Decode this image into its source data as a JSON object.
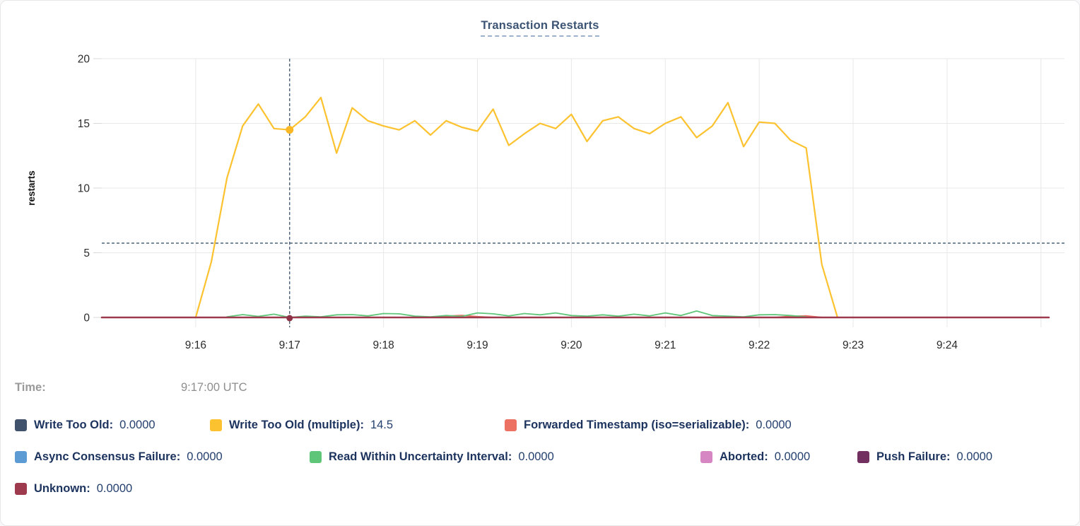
{
  "title": "Transaction Restarts",
  "time": {
    "label": "Time:",
    "value": "9:17:00 UTC"
  },
  "colors": {
    "grid": "#e8e8e8",
    "tick": "#d9d9d9",
    "axis_text": "#2b2b2b",
    "crosshair": "#3d566e",
    "title": "#3c5474",
    "legend_label": "#1c335e",
    "legend_value": "#24406e",
    "time_text": "#979797",
    "hover_dot_yellow": "#fcb824",
    "hover_dot_maroon": "#8e3346"
  },
  "chart_data": {
    "type": "line",
    "title": "Transaction Restarts",
    "xlabel": "",
    "ylabel": "restarts",
    "ylim": [
      0,
      20
    ],
    "y_ticks": [
      0,
      5,
      10,
      15,
      20
    ],
    "x_domain_seconds": [
      0,
      615
    ],
    "x_domain_note": "seconds after 9:15:00 UTC",
    "x_ticks": [
      {
        "t": 60,
        "label": "9:16"
      },
      {
        "t": 120,
        "label": "9:17"
      },
      {
        "t": 180,
        "label": "9:18"
      },
      {
        "t": 240,
        "label": "9:19"
      },
      {
        "t": 300,
        "label": "9:20"
      },
      {
        "t": 360,
        "label": "9:21"
      },
      {
        "t": 420,
        "label": "9:22"
      },
      {
        "t": 480,
        "label": "9:23"
      },
      {
        "t": 540,
        "label": "9:24"
      },
      {
        "t": 600,
        "label": ""
      }
    ],
    "grid": true,
    "legend_position": "bottom",
    "crosshair": {
      "t": 120,
      "time": "9:17:00 UTC",
      "hline_value": 5.74,
      "dot": {
        "series": "Write Too Old (multiple)",
        "t": 120,
        "value": 14.5
      },
      "zero_dot_series": "Unknown"
    },
    "series": [
      {
        "name": "Write Too Old",
        "label": "Write Too Old:",
        "legend_value": "0.0000",
        "color": "#41526d",
        "line_width": 2,
        "points": [
          [
            0,
            0
          ],
          [
            605,
            0
          ]
        ]
      },
      {
        "name": "Write Too Old (multiple)",
        "label": "Write Too Old (multiple):",
        "legend_value": "14.5",
        "color": "#fcc22f",
        "line_width": 2.2,
        "points": [
          [
            60,
            0
          ],
          [
            70,
            4.3
          ],
          [
            80,
            10.8
          ],
          [
            90,
            14.8
          ],
          [
            100,
            16.5
          ],
          [
            110,
            14.6
          ],
          [
            120,
            14.5
          ],
          [
            130,
            15.5
          ],
          [
            140,
            17
          ],
          [
            150,
            12.7
          ],
          [
            160,
            16.2
          ],
          [
            170,
            15.2
          ],
          [
            180,
            14.8
          ],
          [
            190,
            14.5
          ],
          [
            200,
            15.2
          ],
          [
            210,
            14.1
          ],
          [
            220,
            15.2
          ],
          [
            230,
            14.7
          ],
          [
            240,
            14.4
          ],
          [
            250,
            16.1
          ],
          [
            260,
            13.3
          ],
          [
            270,
            14.2
          ],
          [
            280,
            15
          ],
          [
            290,
            14.6
          ],
          [
            300,
            15.7
          ],
          [
            310,
            13.6
          ],
          [
            320,
            15.2
          ],
          [
            330,
            15.5
          ],
          [
            340,
            14.6
          ],
          [
            350,
            14.2
          ],
          [
            360,
            15
          ],
          [
            370,
            15.5
          ],
          [
            380,
            13.9
          ],
          [
            390,
            14.8
          ],
          [
            400,
            16.6
          ],
          [
            410,
            13.2
          ],
          [
            420,
            15.1
          ],
          [
            430,
            15
          ],
          [
            440,
            13.7
          ],
          [
            450,
            13.1
          ],
          [
            460,
            4.1
          ],
          [
            470,
            0
          ]
        ]
      },
      {
        "name": "Forwarded Timestamp (iso=serializable)",
        "label": "Forwarded Timestamp (iso=serializable):",
        "legend_value": "0.0000",
        "color": "#ec7163",
        "line_width": 2,
        "points": [
          [
            0,
            0
          ],
          [
            210,
            0
          ],
          [
            220,
            0.1
          ],
          [
            230,
            0.16
          ],
          [
            240,
            0.06
          ],
          [
            250,
            0
          ],
          [
            430,
            0
          ],
          [
            440,
            0.08
          ],
          [
            450,
            0.12
          ],
          [
            460,
            0
          ],
          [
            605,
            0
          ]
        ]
      },
      {
        "name": "Async Consensus Failure",
        "label": "Async Consensus Failure:",
        "legend_value": "0.0000",
        "color": "#5c9bd3",
        "line_width": 2,
        "points": [
          [
            0,
            0
          ],
          [
            605,
            0
          ]
        ]
      },
      {
        "name": "Read Within Uncertainty Interval",
        "label": "Read Within Uncertainty Interval:",
        "legend_value": "0.0000",
        "color": "#5fc579",
        "line_width": 1.8,
        "points": [
          [
            80,
            0.05
          ],
          [
            90,
            0.22
          ],
          [
            100,
            0.08
          ],
          [
            110,
            0.25
          ],
          [
            120,
            0
          ],
          [
            130,
            0.1
          ],
          [
            140,
            0.05
          ],
          [
            150,
            0.2
          ],
          [
            160,
            0.22
          ],
          [
            170,
            0.12
          ],
          [
            180,
            0.3
          ],
          [
            190,
            0.28
          ],
          [
            200,
            0.1
          ],
          [
            210,
            0.05
          ],
          [
            220,
            0.15
          ],
          [
            230,
            0.08
          ],
          [
            240,
            0.35
          ],
          [
            250,
            0.28
          ],
          [
            260,
            0.12
          ],
          [
            270,
            0.3
          ],
          [
            280,
            0.2
          ],
          [
            290,
            0.35
          ],
          [
            300,
            0.15
          ],
          [
            310,
            0.1
          ],
          [
            320,
            0.2
          ],
          [
            330,
            0.1
          ],
          [
            340,
            0.25
          ],
          [
            350,
            0.12
          ],
          [
            360,
            0.35
          ],
          [
            370,
            0.15
          ],
          [
            380,
            0.5
          ],
          [
            390,
            0.15
          ],
          [
            400,
            0.1
          ],
          [
            410,
            0.05
          ],
          [
            420,
            0.2
          ],
          [
            430,
            0.22
          ],
          [
            440,
            0.15
          ],
          [
            450,
            0.05
          ]
        ]
      },
      {
        "name": "Aborted",
        "label": "Aborted:",
        "legend_value": "0.0000",
        "color": "#d586c3",
        "line_width": 2,
        "points": [
          [
            0,
            0
          ],
          [
            605,
            0
          ]
        ]
      },
      {
        "name": "Push Failure",
        "label": "Push Failure:",
        "legend_value": "0.0000",
        "color": "#71305f",
        "line_width": 2,
        "points": [
          [
            0,
            0
          ],
          [
            605,
            0
          ]
        ]
      },
      {
        "name": "Unknown",
        "label": "Unknown:",
        "legend_value": "0.0000",
        "color": "#9e3a4e",
        "line_width": 2.6,
        "points": [
          [
            0,
            0
          ],
          [
            605,
            0
          ]
        ]
      }
    ],
    "legend_rows": [
      [
        0,
        1,
        2
      ],
      [
        3,
        4,
        5,
        6
      ],
      [
        7
      ]
    ]
  }
}
